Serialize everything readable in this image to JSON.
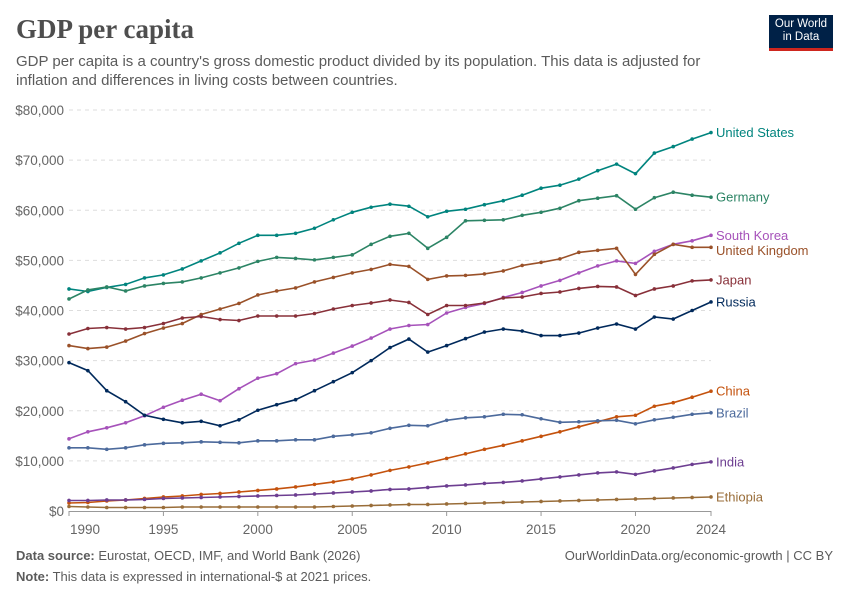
{
  "header": {
    "title": "GDP per capita",
    "subtitle": "GDP per capita is a country's gross domestic product divided by its population. This data is adjusted for inflation and differences in living costs between countries.",
    "logo": "Our World in Data"
  },
  "footer": {
    "source_label": "Data source:",
    "source_text": "Eurostat, OECD, IMF, and World Bank (2026)",
    "link": "OurWorldinData.org/economic-growth | CC BY",
    "note_label": "Note:",
    "note_text": "This data is expressed in international-$ at 2021 prices."
  },
  "chart_data": {
    "type": "line",
    "title": "GDP per capita",
    "xlim": [
      1990,
      2024
    ],
    "ylim": [
      0,
      80000
    ],
    "grid": "horizontal dashed",
    "legend": "inline-right",
    "x_ticks": [
      1990,
      1995,
      2000,
      2005,
      2010,
      2015,
      2020,
      2024
    ],
    "y_ticks": [
      0,
      10000,
      20000,
      30000,
      40000,
      50000,
      60000,
      70000,
      80000
    ],
    "y_tick_labels": [
      "$0",
      "$10,000",
      "$20,000",
      "$30,000",
      "$40,000",
      "$50,000",
      "$60,000",
      "$70,000",
      "$80,000"
    ],
    "x": [
      1990,
      1991,
      1992,
      1993,
      1994,
      1995,
      1996,
      1997,
      1998,
      1999,
      2000,
      2001,
      2002,
      2003,
      2004,
      2005,
      2006,
      2007,
      2008,
      2009,
      2010,
      2011,
      2012,
      2013,
      2014,
      2015,
      2016,
      2017,
      2018,
      2019,
      2020,
      2021,
      2022,
      2023,
      2024
    ],
    "series": [
      {
        "name": "United States",
        "color": "#00847e",
        "values": [
          44300,
          43800,
          44600,
          45200,
          46500,
          47100,
          48300,
          49900,
          51500,
          53400,
          55000,
          55000,
          55400,
          56400,
          58100,
          59600,
          60600,
          61200,
          60800,
          58700,
          59800,
          60200,
          61100,
          61900,
          63000,
          64400,
          65000,
          66200,
          67900,
          69200,
          67300,
          71400,
          72700,
          74200,
          75500
        ]
      },
      {
        "name": "Germany",
        "color": "#2c8465",
        "values": [
          42300,
          44100,
          44700,
          43900,
          44900,
          45400,
          45700,
          46500,
          47500,
          48500,
          49800,
          50600,
          50400,
          50100,
          50600,
          51100,
          53200,
          54800,
          55400,
          52400,
          54600,
          57900,
          58000,
          58100,
          59000,
          59600,
          60400,
          61900,
          62400,
          62900,
          60200,
          62500,
          63600,
          63000,
          62600
        ]
      },
      {
        "name": "South Korea",
        "color": "#a652ba",
        "values": [
          14400,
          15800,
          16600,
          17600,
          19000,
          20700,
          22100,
          23300,
          22000,
          24400,
          26500,
          27400,
          29400,
          30100,
          31500,
          32900,
          34500,
          36300,
          37000,
          37200,
          39500,
          40600,
          41400,
          42600,
          43600,
          44900,
          46000,
          47500,
          48900,
          49900,
          49400,
          51800,
          53200,
          53900,
          55000
        ]
      },
      {
        "name": "United Kingdom",
        "color": "#9a5129",
        "values": [
          33000,
          32400,
          32700,
          33900,
          35400,
          36500,
          37400,
          39200,
          40300,
          41400,
          43100,
          43900,
          44500,
          45700,
          46600,
          47500,
          48200,
          49200,
          48800,
          46200,
          46900,
          47000,
          47300,
          47900,
          49000,
          49600,
          50300,
          51600,
          52000,
          52400,
          47200,
          51200,
          53200,
          52600,
          52600
        ]
      },
      {
        "name": "Japan",
        "color": "#883039",
        "values": [
          35300,
          36400,
          36600,
          36300,
          36600,
          37400,
          38500,
          38800,
          38200,
          38000,
          38900,
          38900,
          38900,
          39400,
          40300,
          41000,
          41500,
          42100,
          41600,
          39200,
          41000,
          41000,
          41500,
          42500,
          42700,
          43400,
          43700,
          44400,
          44800,
          44700,
          43000,
          44300,
          44900,
          45900,
          46100
        ]
      },
      {
        "name": "Russia",
        "color": "#00295b",
        "values": [
          29600,
          28000,
          24000,
          21800,
          19100,
          18300,
          17600,
          17900,
          17000,
          18200,
          20100,
          21200,
          22200,
          24000,
          25800,
          27600,
          30000,
          32600,
          34300,
          31700,
          33000,
          34400,
          35700,
          36300,
          35900,
          35000,
          35000,
          35500,
          36500,
          37300,
          36300,
          38700,
          38300,
          40000,
          41700
        ]
      },
      {
        "name": "China",
        "color": "#c4520d",
        "values": [
          1600,
          1700,
          2000,
          2200,
          2500,
          2800,
          3000,
          3300,
          3500,
          3800,
          4100,
          4400,
          4800,
          5300,
          5800,
          6400,
          7200,
          8100,
          8800,
          9600,
          10500,
          11400,
          12300,
          13100,
          14000,
          14900,
          15800,
          16800,
          17800,
          18800,
          19100,
          20900,
          21600,
          22700,
          23900
        ]
      },
      {
        "name": "Brazil",
        "color": "#4c6a9c",
        "values": [
          12600,
          12600,
          12300,
          12600,
          13200,
          13500,
          13600,
          13800,
          13700,
          13600,
          14000,
          14000,
          14200,
          14200,
          14900,
          15200,
          15600,
          16500,
          17100,
          17000,
          18100,
          18600,
          18800,
          19300,
          19200,
          18400,
          17700,
          17800,
          18000,
          18100,
          17400,
          18200,
          18700,
          19300,
          19600
        ]
      },
      {
        "name": "India",
        "color": "#6d3e91",
        "values": [
          2100,
          2100,
          2200,
          2200,
          2300,
          2500,
          2600,
          2700,
          2800,
          2900,
          3000,
          3100,
          3200,
          3400,
          3600,
          3800,
          4000,
          4300,
          4400,
          4700,
          5000,
          5200,
          5500,
          5700,
          6000,
          6400,
          6800,
          7200,
          7600,
          7800,
          7300,
          8000,
          8600,
          9300,
          9800
        ]
      },
      {
        "name": "Ethiopia",
        "color": "#996d39",
        "values": [
          900,
          800,
          700,
          700,
          700,
          700,
          800,
          800,
          800,
          800,
          800,
          800,
          800,
          800,
          900,
          1000,
          1100,
          1200,
          1300,
          1300,
          1400,
          1500,
          1600,
          1700,
          1800,
          1900,
          2000,
          2100,
          2200,
          2300,
          2400,
          2500,
          2600,
          2700,
          2800
        ]
      }
    ]
  }
}
